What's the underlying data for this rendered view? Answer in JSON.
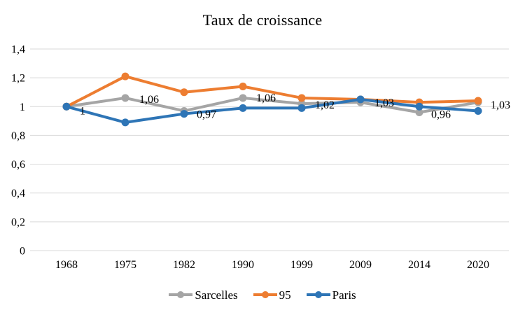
{
  "title": "Taux de croissance",
  "chart_data": {
    "type": "line",
    "title": "Taux de croissance",
    "categories": [
      "1968",
      "1975",
      "1982",
      "1990",
      "1999",
      "2009",
      "2014",
      "2020"
    ],
    "series": [
      {
        "name": "Sarcelles",
        "color": "#a5a5a5",
        "values": [
          1,
          1.06,
          0.97,
          1.06,
          1.02,
          1.03,
          0.96,
          1.03
        ],
        "data_labels": [
          "1",
          "1,06",
          "0,97",
          "1,06",
          "1,02",
          "1,03",
          "0,96",
          "1,03"
        ]
      },
      {
        "name": "95",
        "color": "#ed7d31",
        "values": [
          1,
          1.21,
          1.1,
          1.14,
          1.06,
          1.05,
          1.03,
          1.04
        ]
      },
      {
        "name": "Paris",
        "color": "#2e75b6",
        "values": [
          1,
          0.89,
          0.95,
          0.99,
          0.99,
          1.05,
          1.0,
          0.97
        ]
      }
    ],
    "ylim": [
      0,
      1.4
    ],
    "ytick_labels": [
      "0",
      "0,2",
      "0,4",
      "0,6",
      "0,8",
      "1",
      "1,2",
      "1,4"
    ],
    "grid": "horizontal",
    "gridline_color": "#d9d9d9",
    "text_color": "#000000",
    "background": "#ffffff",
    "legend_position": "bottom",
    "legend_entries": [
      "Sarcelles",
      "95",
      "Paris"
    ]
  }
}
